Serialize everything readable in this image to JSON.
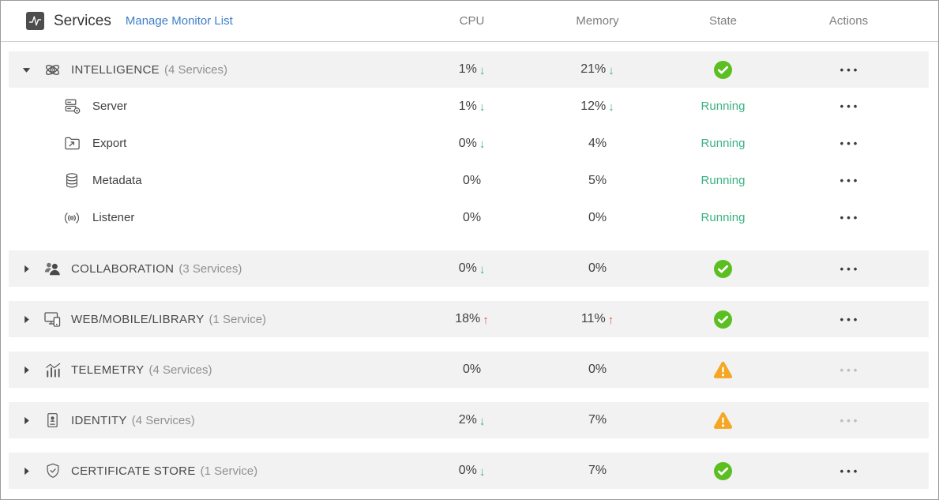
{
  "header": {
    "title": "Services",
    "link_label": "Manage Monitor List",
    "columns": [
      "CPU",
      "Memory",
      "State",
      "Actions"
    ]
  },
  "colors": {
    "link_blue": "#3e7dc8",
    "trend_down_green": "#3bb183",
    "trend_up_red": "#e25549",
    "ok_badge_green": "#5bbf21",
    "warning_badge_orange": "#f5a623",
    "group_row_bg": "#f2f2f2"
  },
  "groups": [
    {
      "name": "INTELLIGENCE",
      "count": "(4 Services)",
      "icon": "atom-icon",
      "expanded": true,
      "cpu": "1%",
      "cpu_trend": "down",
      "memory": "21%",
      "memory_trend": "down",
      "state": "ok",
      "actions_enabled": true,
      "services": [
        {
          "name": "Server",
          "icon": "server-gear-icon",
          "cpu": "1%",
          "cpu_trend": "down",
          "memory": "12%",
          "memory_trend": "down",
          "state_label": "Running"
        },
        {
          "name": "Export",
          "icon": "folder-export-icon",
          "cpu": "0%",
          "cpu_trend": "down",
          "memory": "4%",
          "memory_trend": "",
          "state_label": "Running"
        },
        {
          "name": "Metadata",
          "icon": "database-icon",
          "cpu": "0%",
          "cpu_trend": "",
          "memory": "5%",
          "memory_trend": "",
          "state_label": "Running"
        },
        {
          "name": "Listener",
          "icon": "broadcast-icon",
          "cpu": "0%",
          "cpu_trend": "",
          "memory": "0%",
          "memory_trend": "",
          "state_label": "Running"
        }
      ]
    },
    {
      "name": "COLLABORATION",
      "count": "(3 Services)",
      "icon": "people-icon",
      "expanded": false,
      "cpu": "0%",
      "cpu_trend": "down",
      "memory": "0%",
      "memory_trend": "",
      "state": "ok",
      "actions_enabled": true,
      "services": []
    },
    {
      "name": "WEB/MOBILE/LIBRARY",
      "count": "(1 Service)",
      "icon": "devices-icon",
      "expanded": false,
      "cpu": "18%",
      "cpu_trend": "up",
      "memory": "11%",
      "memory_trend": "up",
      "state": "ok",
      "actions_enabled": true,
      "services": []
    },
    {
      "name": "TELEMETRY",
      "count": "(4 Services)",
      "icon": "bar-chart-icon",
      "expanded": false,
      "cpu": "0%",
      "cpu_trend": "",
      "memory": "0%",
      "memory_trend": "",
      "state": "warning",
      "actions_enabled": false,
      "services": []
    },
    {
      "name": "IDENTITY",
      "count": "(4 Services)",
      "icon": "id-card-icon",
      "expanded": false,
      "cpu": "2%",
      "cpu_trend": "down",
      "memory": "7%",
      "memory_trend": "",
      "state": "warning",
      "actions_enabled": false,
      "services": []
    },
    {
      "name": "CERTIFICATE STORE",
      "count": "(1 Service)",
      "icon": "shield-check-icon",
      "expanded": false,
      "cpu": "0%",
      "cpu_trend": "down",
      "memory": "7%",
      "memory_trend": "",
      "state": "ok",
      "actions_enabled": true,
      "services": []
    }
  ]
}
